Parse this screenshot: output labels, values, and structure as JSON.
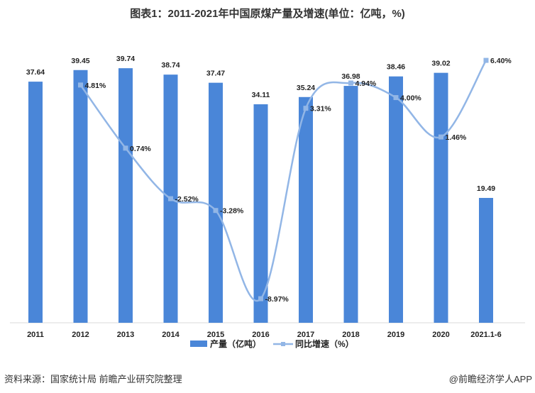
{
  "title": "图表1：2011-2021年中国原煤产量及增速(单位：亿吨，%)",
  "source": "资料来源：国家统计局 前瞻产业研究院整理",
  "brand": "@前瞻经济学人APP",
  "colors": {
    "bar": "#4a86d8",
    "line": "#92b6e6"
  },
  "chart_data": {
    "type": "bar+line",
    "categories": [
      "2011",
      "2012",
      "2013",
      "2014",
      "2015",
      "2016",
      "2017",
      "2018",
      "2019",
      "2020",
      "2021.1-6"
    ],
    "series": [
      {
        "name": "产量（亿吨）",
        "type": "bar",
        "values": [
          37.64,
          39.45,
          39.74,
          38.74,
          37.47,
          34.11,
          35.24,
          36.98,
          38.46,
          39.02,
          19.49
        ],
        "labels": [
          "37.64",
          "39.45",
          "39.74",
          "38.74",
          "37.47",
          "34.11",
          "35.24",
          "36.98",
          "38.46",
          "39.02",
          "19.49"
        ]
      },
      {
        "name": "同比增速（%）",
        "type": "line",
        "values": [
          null,
          4.81,
          0.74,
          -2.52,
          -3.28,
          -8.97,
          3.31,
          4.94,
          4.0,
          1.46,
          6.4
        ],
        "labels": [
          "",
          "4.81%",
          "0.74%",
          "-2.52%",
          "-3.28%",
          "-8.97%",
          "3.31%",
          "4.94%",
          "4.00%",
          "1.46%",
          "6.40%"
        ]
      }
    ],
    "ylim_bar": [
      0,
      45
    ],
    "ylim_line": [
      -10,
      8
    ],
    "grid": false,
    "legend": "bottom-center"
  }
}
